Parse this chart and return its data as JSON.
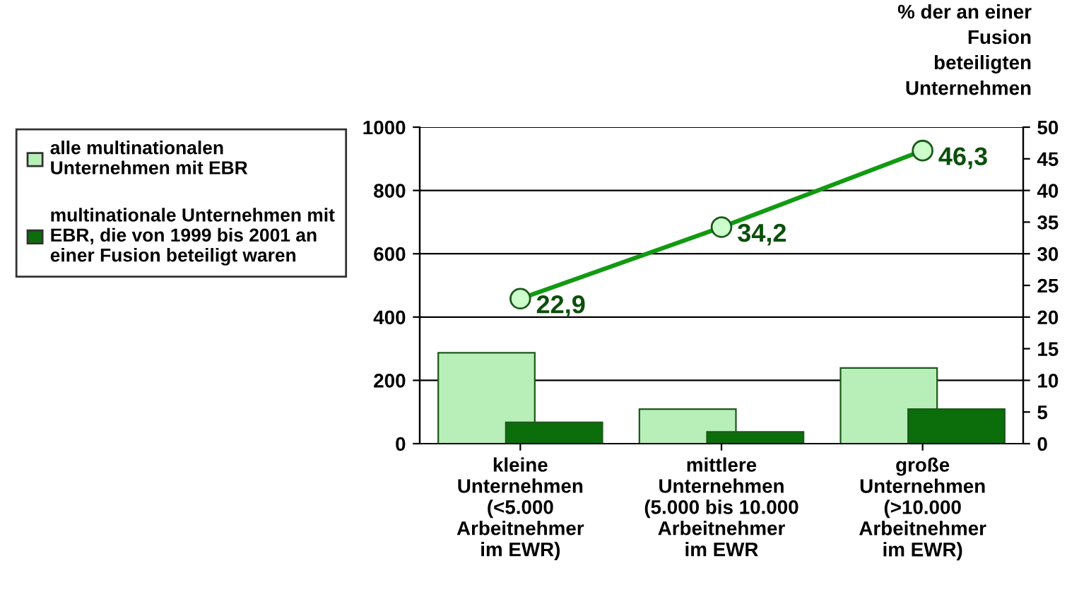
{
  "chart_data": {
    "type": "bar",
    "categories": [
      "kleine\nUnternehmen\n(<5.000\nArbeitnehmer\nim EWR)",
      "mittlere\nUnternehmen\n(5.000 bis 10.000\nArbeitnehmer\nim EWR",
      "große\nUnternehmen\n(>10.000\nArbeitnehmer\nim EWR)"
    ],
    "series": [
      {
        "name": "alle multinationalen\nUnternehmen mit EBR",
        "color": "#b8efb8",
        "values": [
          287,
          109,
          239
        ]
      },
      {
        "name": "multinationale Unternehmen mit\nEBR, die von 1999 bis 2001 an\neiner Fusion beteiligt waren",
        "color": "#0b6e0b",
        "values": [
          67,
          37,
          109
        ]
      },
      {
        "type": "line",
        "axis": "y2",
        "color": "#129a12",
        "values": [
          22.9,
          34.2,
          46.3
        ],
        "value_labels": [
          "22,9",
          "34,2",
          "46,3"
        ],
        "marker": "circle",
        "line_style": "solid"
      }
    ],
    "y2label": "% der an einer\nFusion\nbeteiligten\nUnternehmen",
    "ylim": [
      0,
      1000
    ],
    "yticks": [
      0,
      200,
      400,
      600,
      800,
      1000
    ],
    "y2lim": [
      0,
      50
    ],
    "y2ticks": [
      0,
      5,
      10,
      15,
      20,
      25,
      30,
      35,
      40,
      45,
      50
    ],
    "grid": "y",
    "legend": "left"
  }
}
